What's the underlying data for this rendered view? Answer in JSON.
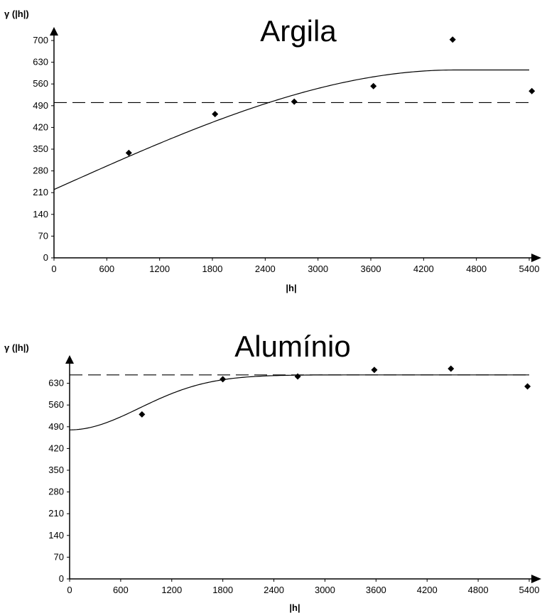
{
  "chart_data": [
    {
      "type": "scatter",
      "title": "Argila",
      "xlabel": "|h|",
      "ylabel": "γ (|h|)",
      "xlim": [
        0,
        5400
      ],
      "ylim": [
        0,
        700
      ],
      "x_ticks": [
        0,
        600,
        1200,
        1800,
        2400,
        3000,
        3600,
        4200,
        4800,
        5400
      ],
      "y_ticks": [
        0,
        70,
        140,
        210,
        280,
        350,
        420,
        490,
        560,
        630,
        700
      ],
      "points": [
        {
          "x": 850,
          "y": 338
        },
        {
          "x": 1830,
          "y": 463
        },
        {
          "x": 2730,
          "y": 503
        },
        {
          "x": 3630,
          "y": 553
        },
        {
          "x": 4530,
          "y": 703
        },
        {
          "x": 5430,
          "y": 537
        }
      ],
      "model": {
        "type": "spherical",
        "nugget": 220,
        "sill": 605,
        "range": 4550
      },
      "reference_line": 500,
      "grid": false,
      "legend": "none"
    },
    {
      "type": "scatter",
      "title": "Alumínio",
      "xlabel": "|h|",
      "ylabel": "γ (|h|)",
      "xlim": [
        0,
        5400
      ],
      "ylim": [
        0,
        700
      ],
      "x_ticks": [
        0,
        600,
        1200,
        1800,
        2400,
        3000,
        3600,
        4200,
        4800,
        5400
      ],
      "y_ticks": [
        0,
        70,
        140,
        210,
        280,
        350,
        420,
        490,
        560,
        630
      ],
      "points": [
        {
          "x": 850,
          "y": 530
        },
        {
          "x": 1800,
          "y": 643
        },
        {
          "x": 2680,
          "y": 652
        },
        {
          "x": 3580,
          "y": 673
        },
        {
          "x": 4480,
          "y": 677
        },
        {
          "x": 5380,
          "y": 620
        }
      ],
      "model": {
        "type": "gaussian",
        "nugget": 480,
        "sill": 657,
        "range": 2000
      },
      "reference_line": 657,
      "grid": false,
      "legend": "none"
    }
  ]
}
